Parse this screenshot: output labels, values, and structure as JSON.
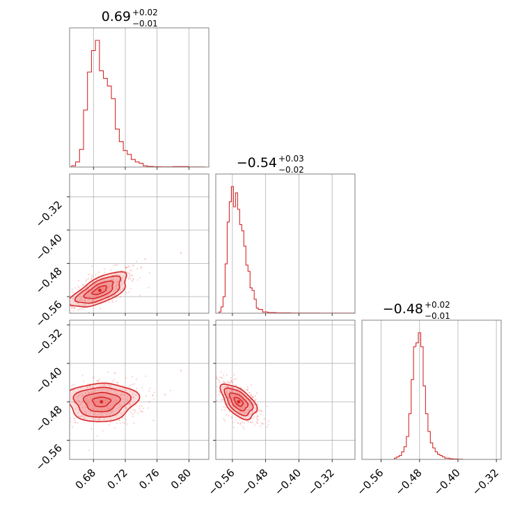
{
  "chart_data": {
    "type": "corner",
    "color": "#d62728",
    "fill_color": "#f08080",
    "grid": true,
    "parameters": [
      {
        "title_main": "0.69",
        "title_plus": "+0.02",
        "title_minus": "−0.01",
        "range": [
          0.65,
          0.825
        ],
        "ticks": [
          0.68,
          0.72,
          0.76,
          0.8
        ],
        "tick_labels": [
          "0.68",
          "0.72",
          "0.76",
          "0.80"
        ],
        "hist_x": [
          0.655,
          0.66,
          0.665,
          0.67,
          0.675,
          0.68,
          0.685,
          0.69,
          0.695,
          0.7,
          0.705,
          0.71,
          0.715,
          0.72,
          0.725,
          0.73,
          0.735,
          0.74,
          0.745,
          0.75,
          0.76,
          0.77,
          0.79,
          0.81
        ],
        "hist_y": [
          0.01,
          0.04,
          0.14,
          0.45,
          0.75,
          0.92,
          1.0,
          0.76,
          0.7,
          0.64,
          0.54,
          0.3,
          0.2,
          0.13,
          0.1,
          0.06,
          0.04,
          0.03,
          0.01,
          0.005,
          0.003,
          0.002,
          0.004,
          0.001
        ]
      },
      {
        "title_main": "−0.54",
        "title_plus": "+0.03",
        "title_minus": "−0.02",
        "range": [
          -0.6,
          -0.265
        ],
        "ticks": [
          -0.56,
          -0.48,
          -0.4,
          -0.32
        ],
        "tick_labels": [
          "−0.56",
          "−0.48",
          "−0.40",
          "−0.32"
        ],
        "hist_x": [
          -0.59,
          -0.585,
          -0.58,
          -0.575,
          -0.57,
          -0.565,
          -0.56,
          -0.555,
          -0.55,
          -0.545,
          -0.54,
          -0.535,
          -0.53,
          -0.525,
          -0.52,
          -0.515,
          -0.51,
          -0.505,
          -0.5,
          -0.495,
          -0.49,
          -0.485,
          -0.48,
          -0.47,
          -0.44,
          -0.4,
          -0.3
        ],
        "hist_y": [
          0.01,
          0.05,
          0.13,
          0.39,
          0.72,
          0.88,
          1.0,
          0.84,
          0.95,
          0.82,
          0.7,
          0.65,
          0.53,
          0.38,
          0.33,
          0.2,
          0.18,
          0.11,
          0.04,
          0.03,
          0.03,
          0.01,
          0.01,
          0.005,
          0.003,
          0.002,
          0.001
        ]
      },
      {
        "title_main": "−0.48",
        "title_plus": "+0.02",
        "title_minus": "−0.01",
        "range": [
          -0.6,
          -0.31
        ],
        "ticks": [
          -0.56,
          -0.48,
          -0.4,
          -0.32
        ],
        "tick_labels": [
          "−0.56",
          "−0.48",
          "−0.40",
          "−0.32"
        ],
        "hist_x": [
          -0.53,
          -0.525,
          -0.52,
          -0.515,
          -0.51,
          -0.505,
          -0.5,
          -0.495,
          -0.49,
          -0.485,
          -0.48,
          -0.475,
          -0.47,
          -0.465,
          -0.46,
          -0.455,
          -0.45,
          -0.445,
          -0.44,
          -0.435,
          -0.43,
          -0.425,
          -0.42,
          -0.415,
          -0.405,
          -0.395
        ],
        "hist_y": [
          0.01,
          0.02,
          0.03,
          0.06,
          0.1,
          0.18,
          0.36,
          0.63,
          0.89,
          0.92,
          1.0,
          0.89,
          0.58,
          0.36,
          0.22,
          0.13,
          0.09,
          0.06,
          0.04,
          0.03,
          0.02,
          0.01,
          0.01,
          0.005,
          0.003,
          0.002
        ]
      }
    ],
    "pairs": [
      {
        "x_param": 0,
        "y_param": 1,
        "center": [
          0.688,
          -0.545
        ],
        "sigma": [
          0.018,
          0.021
        ],
        "correlation": 0.65,
        "point_scatter": [
          [
            0.705,
            -0.51
          ],
          [
            0.72,
            -0.5
          ],
          [
            0.73,
            -0.485
          ],
          [
            0.74,
            -0.49
          ],
          [
            0.71,
            -0.525
          ],
          [
            0.665,
            -0.565
          ],
          [
            0.67,
            -0.58
          ],
          [
            0.68,
            -0.57
          ],
          [
            0.695,
            -0.535
          ],
          [
            0.725,
            -0.505
          ],
          [
            0.745,
            -0.47
          ],
          [
            0.79,
            -0.455
          ],
          [
            0.66,
            -0.57
          ],
          [
            0.69,
            -0.55
          ],
          [
            0.715,
            -0.52
          ]
        ]
      },
      {
        "x_param": 0,
        "y_param": 2,
        "center": [
          0.69,
          -0.48
        ],
        "sigma": [
          0.022,
          0.02
        ],
        "correlation": 0.05,
        "point_scatter": [
          [
            0.66,
            -0.47
          ],
          [
            0.67,
            -0.5
          ],
          [
            0.7,
            -0.45
          ],
          [
            0.72,
            -0.49
          ],
          [
            0.73,
            -0.47
          ],
          [
            0.68,
            -0.43
          ],
          [
            0.75,
            -0.48
          ],
          [
            0.69,
            -0.51
          ],
          [
            0.71,
            -0.44
          ],
          [
            0.77,
            -0.465
          ],
          [
            0.79,
            -0.415
          ],
          [
            0.655,
            -0.455
          ],
          [
            0.74,
            -0.5
          ],
          [
            0.7,
            -0.5
          ],
          [
            0.68,
            -0.46
          ]
        ]
      },
      {
        "x_param": 1,
        "y_param": 2,
        "center": [
          -0.545,
          -0.48
        ],
        "sigma": [
          0.021,
          0.018
        ],
        "correlation": -0.55,
        "point_scatter": [
          [
            -0.58,
            -0.44
          ],
          [
            -0.57,
            -0.45
          ],
          [
            -0.56,
            -0.46
          ],
          [
            -0.53,
            -0.49
          ],
          [
            -0.52,
            -0.5
          ],
          [
            -0.5,
            -0.51
          ],
          [
            -0.51,
            -0.47
          ],
          [
            -0.55,
            -0.47
          ],
          [
            -0.585,
            -0.43
          ],
          [
            -0.49,
            -0.5
          ],
          [
            -0.54,
            -0.5
          ],
          [
            -0.56,
            -0.44
          ],
          [
            -0.525,
            -0.455
          ],
          [
            -0.5,
            -0.485
          ],
          [
            -0.57,
            -0.47
          ]
        ]
      }
    ]
  }
}
